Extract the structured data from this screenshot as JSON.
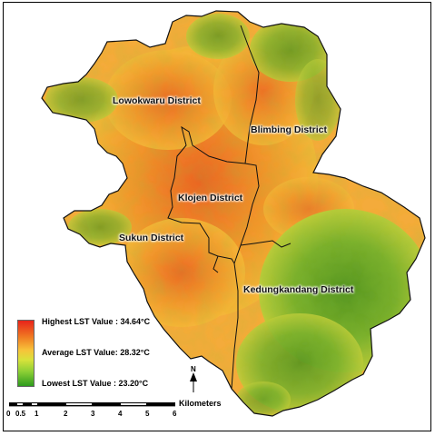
{
  "districts": [
    {
      "id": "lowokwaru",
      "label": "Lowokwaru District"
    },
    {
      "id": "blimbing",
      "label": "Blimbing District"
    },
    {
      "id": "klojen",
      "label": "Klojen District"
    },
    {
      "id": "sukun",
      "label": "Sukun District"
    },
    {
      "id": "kedungkandang",
      "label": "Kedungkandang District"
    }
  ],
  "legend": {
    "highest": "Highest LST Value : 34.64°C",
    "average": "Average LST Value: 28.32°C",
    "lowest": "Lowest LST Value : 23.20°C",
    "colors": {
      "high": "#e8231a",
      "mid": "#f7c33a",
      "low": "#2e9b1e"
    }
  },
  "scale_bar": {
    "unit": "Kilometers",
    "ticks": [
      "0",
      "0.5",
      "1",
      "2",
      "3",
      "4",
      "5",
      "6"
    ]
  },
  "north_arrow": {
    "label": "N"
  }
}
